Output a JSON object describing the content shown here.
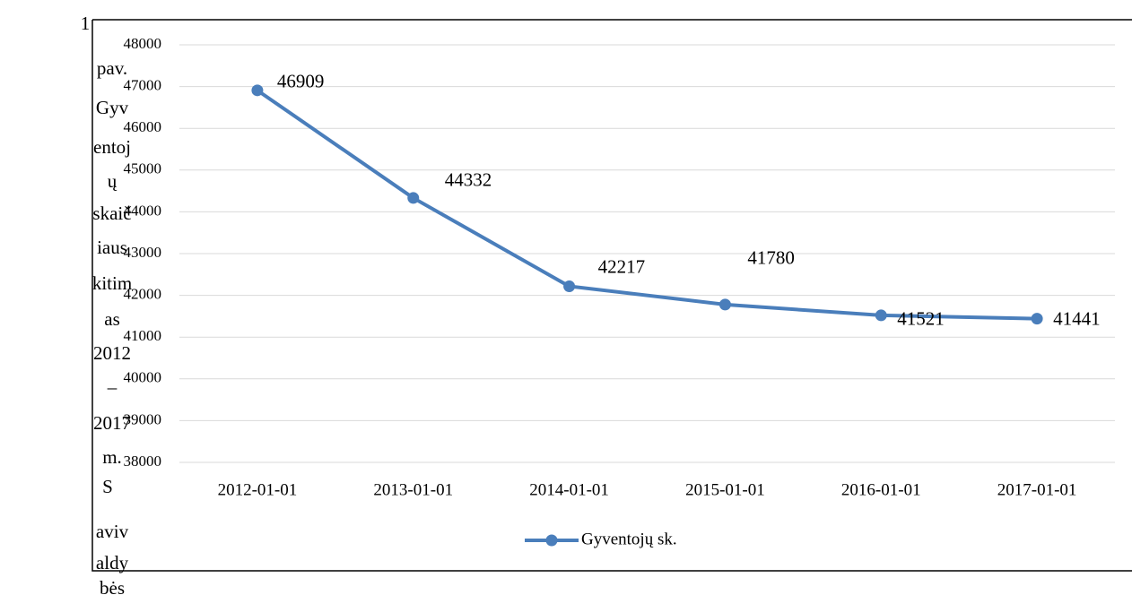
{
  "chart_data": {
    "type": "line",
    "categories": [
      "2012-01-01",
      "2013-01-01",
      "2014-01-01",
      "2015-01-01",
      "2016-01-01",
      "2017-01-01"
    ],
    "series": [
      {
        "name": "Gyventojų sk.",
        "color": "#4a7ebb",
        "values": [
          46909,
          44332,
          42217,
          41780,
          41521,
          41441
        ]
      }
    ],
    "ylim": [
      38000,
      48000
    ],
    "yticks": [
      38000,
      39000,
      40000,
      41000,
      42000,
      43000,
      44000,
      45000,
      46000,
      47000,
      48000
    ],
    "grid": true,
    "legend": "bottom"
  },
  "side_text": [
    "1",
    "pav.",
    "Gyv",
    "entoj",
    "ų",
    "skaič",
    "iaus",
    "kitim",
    "as",
    "2012",
    "–",
    "2017",
    "m.",
    "S",
    "aviv",
    "aldy",
    "bės"
  ]
}
